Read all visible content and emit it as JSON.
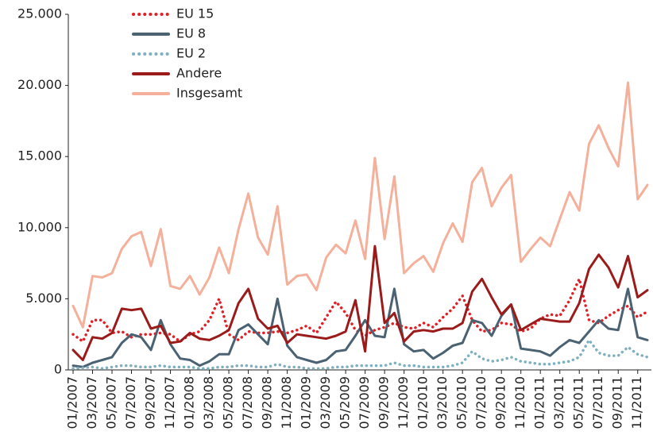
{
  "chart_data": {
    "type": "line",
    "categories": [
      "01/2007",
      null,
      "03/2007",
      null,
      "05/2007",
      null,
      "07/2007",
      null,
      "09/2007",
      null,
      "11/2007",
      null,
      "01/2008",
      null,
      "03/2008",
      null,
      "05/2008",
      null,
      "07/2008",
      null,
      "09/2008",
      null,
      "11/2008",
      null,
      "01/2009",
      null,
      "03/2009",
      null,
      "05/2009",
      null,
      "07/2009",
      null,
      "09/2009",
      null,
      "11/2009",
      null,
      "01/2010",
      null,
      "03/2010",
      null,
      "05/2010",
      null,
      "07/2010",
      null,
      "09/2010",
      null,
      "11/2010",
      null,
      "01/2011",
      null,
      "03/2011",
      null,
      "05/2011",
      null,
      "07/2011",
      null,
      "09/2011",
      null,
      "11/2011",
      null
    ],
    "series": [
      {
        "name": "EU 15",
        "color": "#e31e24",
        "dash": "dotted",
        "values": [
          2500,
          2000,
          3500,
          3500,
          2600,
          2700,
          2300,
          2500,
          2500,
          2600,
          2500,
          2000,
          2500,
          2700,
          3500,
          5000,
          2500,
          2100,
          2700,
          2600,
          2600,
          2700,
          2600,
          2800,
          3100,
          2600,
          3700,
          4800,
          4000,
          2800,
          2400,
          2800,
          3000,
          3300,
          3000,
          2900,
          3300,
          3000,
          3700,
          4300,
          5200,
          3500,
          2700,
          2800,
          3300,
          3200,
          2700,
          2900,
          3600,
          3900,
          3800,
          4900,
          6400,
          3500,
          3300,
          3800,
          4200,
          4500,
          3700,
          4100
        ]
      },
      {
        "name": "EU 8",
        "color": "#4a6272",
        "dash": "solid",
        "values": [
          300,
          200,
          500,
          700,
          900,
          1900,
          2500,
          2300,
          1400,
          3500,
          1800,
          800,
          700,
          300,
          600,
          1100,
          1100,
          2800,
          3200,
          2500,
          1800,
          5000,
          1700,
          900,
          700,
          500,
          700,
          1300,
          1400,
          2400,
          3500,
          2400,
          2300,
          5700,
          1800,
          1300,
          1400,
          800,
          1200,
          1700,
          1900,
          3500,
          3300,
          2400,
          3800,
          4600,
          1500,
          1400,
          1300,
          1000,
          1600,
          2100,
          1900,
          2700,
          3500,
          2900,
          2800,
          5700,
          2300,
          2100
        ]
      },
      {
        "name": "EU 2",
        "color": "#7fb0c0",
        "dash": "dotted",
        "values": [
          100,
          150,
          200,
          100,
          200,
          300,
          300,
          200,
          200,
          300,
          200,
          200,
          200,
          100,
          100,
          200,
          200,
          300,
          300,
          200,
          200,
          400,
          200,
          200,
          100,
          100,
          100,
          200,
          200,
          300,
          300,
          300,
          300,
          500,
          300,
          300,
          200,
          200,
          200,
          300,
          500,
          1300,
          800,
          600,
          700,
          900,
          600,
          500,
          400,
          400,
          500,
          600,
          900,
          2100,
          1200,
          1000,
          1000,
          1600,
          1100,
          900
        ]
      },
      {
        "name": "Andere",
        "color": "#9b1b1b",
        "dash": "solid",
        "values": [
          1400,
          700,
          2300,
          2200,
          2600,
          4300,
          4200,
          4300,
          2900,
          3100,
          1900,
          2000,
          2600,
          2200,
          2100,
          2400,
          2800,
          4700,
          5700,
          3600,
          2900,
          3100,
          1900,
          2500,
          2400,
          2300,
          2200,
          2400,
          2700,
          4900,
          1300,
          8700,
          3300,
          4000,
          2000,
          2700,
          2800,
          2700,
          2900,
          2900,
          3300,
          5500,
          6400,
          5100,
          3900,
          4600,
          2800,
          3200,
          3600,
          3500,
          3400,
          3400,
          4700,
          7100,
          8100,
          7200,
          5800,
          8000,
          5100,
          5600
        ]
      },
      {
        "name": "Insgesamt",
        "color": "#f4b09a",
        "dash": "solid",
        "values": [
          4500,
          3000,
          6600,
          6500,
          6800,
          8500,
          9400,
          9700,
          7300,
          9900,
          5900,
          5700,
          6600,
          5300,
          6500,
          8600,
          6800,
          9900,
          12400,
          9300,
          8100,
          11500,
          6000,
          6600,
          6700,
          5600,
          7900,
          8800,
          8200,
          10500,
          7800,
          14900,
          9200,
          13600,
          6800,
          7500,
          8000,
          6900,
          8900,
          10300,
          9000,
          13200,
          14200,
          11500,
          12800,
          13700,
          7600,
          8500,
          9300,
          8700,
          10600,
          12500,
          11200,
          15900,
          17200,
          15600,
          14300,
          20200,
          12000,
          13000
        ]
      }
    ],
    "ylim": [
      0,
      25000
    ],
    "yticks": [
      0,
      {
        "value": 5000,
        "label": "5.000"
      },
      {
        "value": 10000,
        "label": "10.000"
      },
      {
        "value": 15000,
        "label": "15.000"
      },
      {
        "value": 20000,
        "label": "20.000"
      },
      {
        "value": 25000,
        "label": "25.000"
      }
    ],
    "grid": false
  }
}
